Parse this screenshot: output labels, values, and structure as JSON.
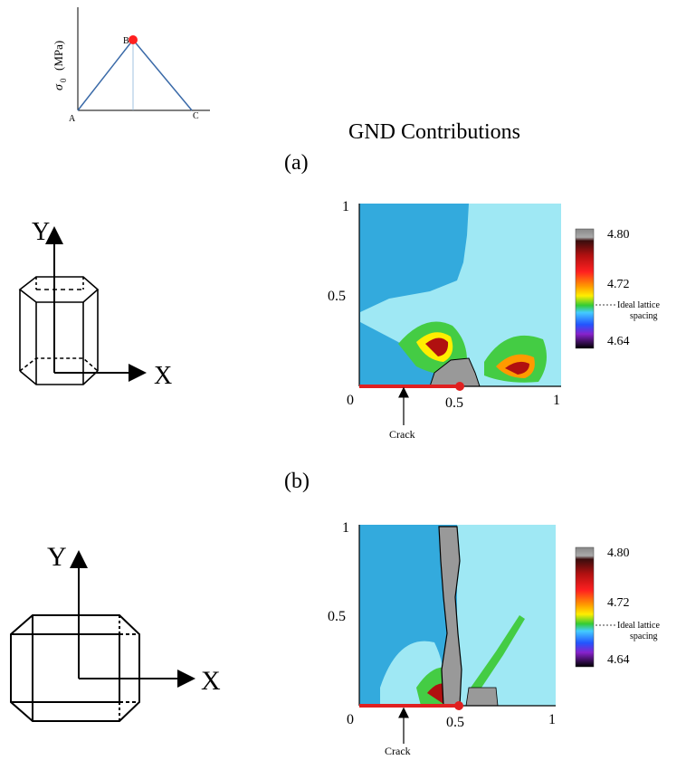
{
  "figure": {
    "title": "GND Contributions",
    "panel_a_label": "(a)",
    "panel_b_label": "(b)"
  },
  "load_diagram": {
    "y_axis_label_symbol": "σ",
    "y_axis_label_subscript": "0",
    "y_axis_label_unit": "(MPa)",
    "points": {
      "A": "A",
      "B": "B",
      "C": "C"
    }
  },
  "crystals": [
    {
      "y_label": "Y",
      "x_label": "X"
    },
    {
      "y_label": "Y",
      "x_label": "X"
    }
  ],
  "maps": [
    {
      "x_ticks": [
        "0",
        "0.5",
        "1"
      ],
      "y_ticks": [
        "0.5",
        "1"
      ],
      "crack_label": "Crack",
      "colorbar": {
        "max_label": "4.80",
        "mid_label": "4.72",
        "min_label": "4.64",
        "annotation_line1": "Ideal lattice",
        "annotation_line2": "spacing"
      }
    },
    {
      "x_ticks": [
        "0",
        "0.5",
        "1"
      ],
      "y_ticks": [
        "0.5",
        "1"
      ],
      "crack_label": "Crack",
      "colorbar": {
        "max_label": "4.80",
        "mid_label": "4.72",
        "min_label": "4.64",
        "annotation_line1": "Ideal lattice",
        "annotation_line2": "spacing"
      }
    }
  ],
  "colors": {
    "map_dark_blue": "#33aadd",
    "map_light_blue": "#9fe8f4",
    "green": "#44cc44",
    "gray": "#999999",
    "red": "#e02020",
    "load_line": "#3a6aa8"
  }
}
